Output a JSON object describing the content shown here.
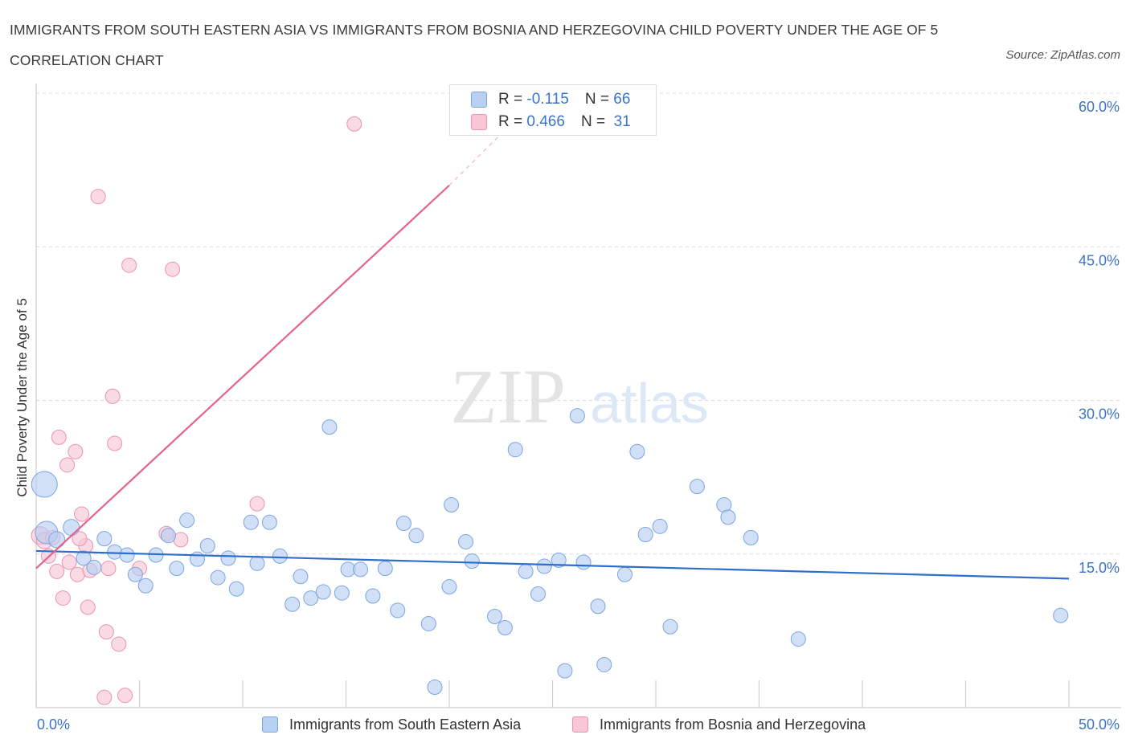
{
  "title": "IMMIGRANTS FROM SOUTH EASTERN ASIA VS IMMIGRANTS FROM BOSNIA AND HERZEGOVINA CHILD POVERTY UNDER THE AGE OF 5 CORRELATION CHART",
  "source": "Source: ZipAtlas.com",
  "watermark": {
    "zip": "ZIP",
    "atlas": "atlas"
  },
  "legend": {
    "rows": [
      {
        "r_label": "R =",
        "r_value": "-0.115",
        "n_label": "N =",
        "n_value": "66"
      },
      {
        "r_label": "R =",
        "r_value": "0.466",
        "n_label": "N =",
        "n_value": "31"
      }
    ]
  },
  "colors": {
    "blue_fill": "#b8d0f2",
    "blue_stroke": "#7aa6df",
    "blue_line": "#2e6fcc",
    "pink_fill": "#f8c6d5",
    "pink_stroke": "#ec93ae",
    "pink_line": "#e4628f",
    "grid": "#d9d9d9",
    "axis_text": "#3b73c9"
  },
  "chart_data": {
    "type": "scatter",
    "title": "IMMIGRANTS FROM SOUTH EASTERN ASIA VS IMMIGRANTS FROM BOSNIA AND HERZEGOVINA CHILD POVERTY UNDER THE AGE OF 5 CORRELATION CHART",
    "xlabel": "",
    "ylabel": "Child Poverty Under the Age of 5",
    "xlim": [
      0,
      50
    ],
    "ylim": [
      0,
      60
    ],
    "x_tick_labels": [
      "0.0%",
      "50.0%"
    ],
    "y_ticks": [
      15,
      30,
      45,
      60
    ],
    "y_tick_labels": [
      "15.0%",
      "30.0%",
      "45.0%",
      "60.0%"
    ],
    "grid": true,
    "legend_placement": "top-center",
    "series": [
      {
        "name": "Immigrants from South Eastern Asia",
        "color": "#b8d0f2",
        "trend": {
          "x": [
            0,
            50
          ],
          "y": [
            15.3,
            12.6
          ]
        },
        "points": [
          [
            0.4,
            21.8,
            16
          ],
          [
            0.5,
            17.1,
            14
          ],
          [
            1.0,
            16.4,
            10
          ],
          [
            1.7,
            17.6,
            10
          ],
          [
            2.3,
            14.6,
            9
          ],
          [
            2.8,
            13.7,
            9
          ],
          [
            3.3,
            16.5,
            9
          ],
          [
            3.8,
            15.2,
            9
          ],
          [
            4.4,
            14.9,
            9
          ],
          [
            4.8,
            13.0,
            9
          ],
          [
            5.3,
            11.9,
            9
          ],
          [
            5.8,
            14.9,
            9
          ],
          [
            6.4,
            16.8,
            9
          ],
          [
            6.8,
            13.6,
            9
          ],
          [
            7.3,
            18.3,
            9
          ],
          [
            7.8,
            14.5,
            9
          ],
          [
            8.3,
            15.8,
            9
          ],
          [
            8.8,
            12.7,
            9
          ],
          [
            9.3,
            14.6,
            9
          ],
          [
            9.7,
            11.6,
            9
          ],
          [
            10.4,
            18.1,
            9
          ],
          [
            10.7,
            14.1,
            9
          ],
          [
            11.3,
            18.1,
            9
          ],
          [
            11.8,
            14.8,
            9
          ],
          [
            12.4,
            10.1,
            9
          ],
          [
            12.8,
            12.8,
            9
          ],
          [
            13.3,
            10.7,
            9
          ],
          [
            13.9,
            11.3,
            9
          ],
          [
            14.2,
            27.4,
            9
          ],
          [
            14.8,
            11.2,
            9
          ],
          [
            15.1,
            13.5,
            9
          ],
          [
            15.7,
            13.5,
            9
          ],
          [
            16.3,
            10.9,
            9
          ],
          [
            16.9,
            13.6,
            9
          ],
          [
            17.5,
            9.5,
            9
          ],
          [
            17.8,
            18.0,
            9
          ],
          [
            18.4,
            16.8,
            9
          ],
          [
            19.0,
            8.2,
            9
          ],
          [
            19.3,
            2.0,
            9
          ],
          [
            20.0,
            11.8,
            9
          ],
          [
            20.1,
            19.8,
            9
          ],
          [
            20.8,
            16.2,
            9
          ],
          [
            21.1,
            14.3,
            9
          ],
          [
            22.2,
            8.9,
            9
          ],
          [
            22.7,
            7.8,
            9
          ],
          [
            23.2,
            25.2,
            9
          ],
          [
            23.7,
            13.3,
            9
          ],
          [
            24.3,
            11.1,
            9
          ],
          [
            24.6,
            13.8,
            9
          ],
          [
            25.3,
            14.4,
            9
          ],
          [
            25.6,
            3.6,
            9
          ],
          [
            26.2,
            28.5,
            9
          ],
          [
            26.5,
            14.2,
            9
          ],
          [
            27.2,
            9.9,
            9
          ],
          [
            27.5,
            4.2,
            9
          ],
          [
            28.5,
            13.0,
            9
          ],
          [
            29.1,
            25.0,
            9
          ],
          [
            29.5,
            16.9,
            9
          ],
          [
            30.2,
            17.7,
            9
          ],
          [
            30.7,
            7.9,
            9
          ],
          [
            32.0,
            21.6,
            9
          ],
          [
            33.3,
            19.8,
            9
          ],
          [
            33.5,
            18.6,
            9
          ],
          [
            34.6,
            16.6,
            9
          ],
          [
            36.9,
            6.7,
            9
          ],
          [
            49.6,
            9.0,
            9
          ]
        ]
      },
      {
        "name": "Immigrants from Bosnia and Herzegovina",
        "color": "#f8c6d5",
        "trend": {
          "x": [
            0,
            20
          ],
          "y": [
            13.6,
            51.0
          ],
          "dashed_to": [
            22.4,
            55.8
          ]
        },
        "points": [
          [
            0.2,
            16.8,
            11
          ],
          [
            0.4,
            16.3,
            10
          ],
          [
            0.6,
            14.8,
            9
          ],
          [
            0.8,
            16.6,
            9
          ],
          [
            1.0,
            13.3,
            9
          ],
          [
            1.1,
            26.4,
            9
          ],
          [
            1.3,
            10.7,
            9
          ],
          [
            1.5,
            23.7,
            9
          ],
          [
            1.6,
            14.2,
            9
          ],
          [
            1.9,
            25.0,
            9
          ],
          [
            2.0,
            13.0,
            9
          ],
          [
            2.2,
            18.9,
            9
          ],
          [
            2.4,
            15.8,
            9
          ],
          [
            2.5,
            9.8,
            9
          ],
          [
            2.6,
            13.4,
            9
          ],
          [
            3.0,
            49.9,
            9
          ],
          [
            3.3,
            1.0,
            9
          ],
          [
            3.4,
            7.4,
            9
          ],
          [
            3.5,
            13.6,
            9
          ],
          [
            3.7,
            30.4,
            9
          ],
          [
            3.8,
            25.8,
            9
          ],
          [
            4.0,
            6.2,
            9
          ],
          [
            4.3,
            1.2,
            9
          ],
          [
            4.5,
            43.2,
            9
          ],
          [
            5.0,
            13.6,
            9
          ],
          [
            6.3,
            17.0,
            9
          ],
          [
            6.6,
            42.8,
            9
          ],
          [
            7.0,
            16.4,
            9
          ],
          [
            10.7,
            19.9,
            9
          ],
          [
            15.4,
            57.0,
            9
          ],
          [
            2.1,
            16.5,
            9
          ]
        ]
      }
    ]
  },
  "bottom_legend": {
    "items": [
      {
        "label": "Immigrants from South Eastern Asia"
      },
      {
        "label": "Immigrants from Bosnia and Herzegovina"
      }
    ]
  },
  "axes": {
    "y_title": "Child Poverty Under the Age of 5",
    "x_tick_labels": [
      "0.0%",
      "50.0%"
    ],
    "y_tick_labels": [
      "15.0%",
      "30.0%",
      "45.0%",
      "60.0%"
    ]
  }
}
